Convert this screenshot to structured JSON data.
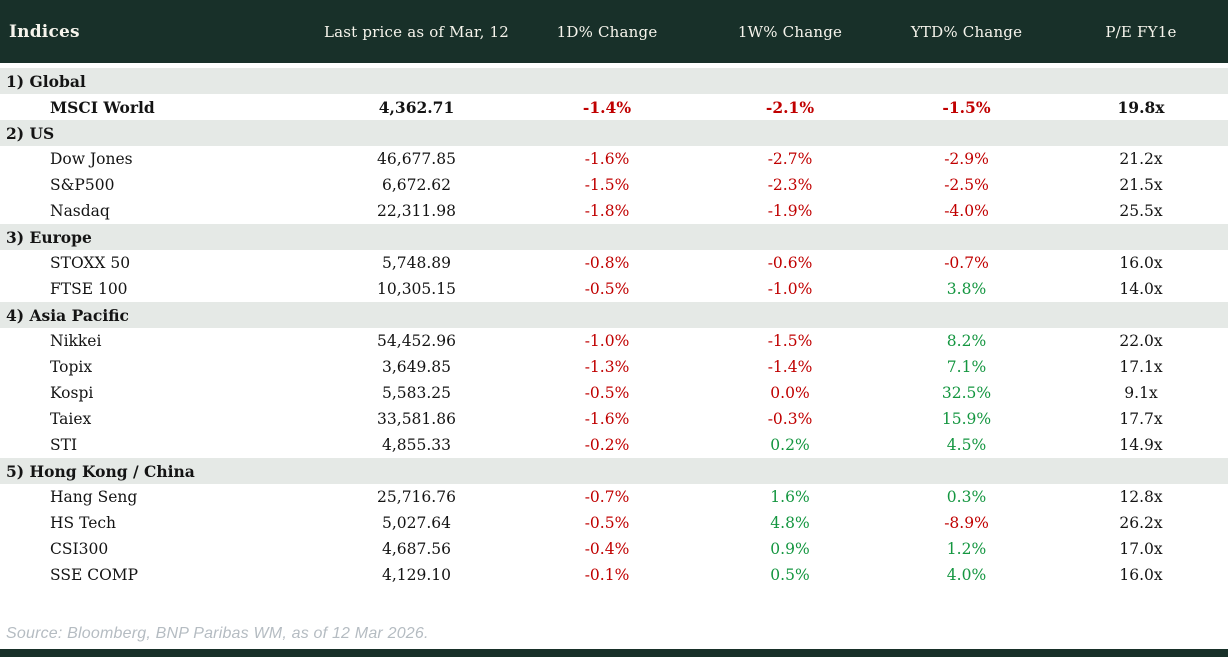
{
  "table": {
    "columns": [
      "Indices",
      "Last price as of Mar, 12",
      "1D% Change",
      "1W% Change",
      "YTD% Change",
      "P/E FY1e"
    ],
    "sections": [
      {
        "label": "1) Global",
        "rows": [
          {
            "name": "MSCI World",
            "bold": true,
            "last": "4,362.71",
            "d1": "-1.4%",
            "w1": "-2.1%",
            "ytd": "-1.5%",
            "pe": "19.8x"
          }
        ]
      },
      {
        "label": "2) US",
        "rows": [
          {
            "name": "Dow Jones",
            "last": "46,677.85",
            "d1": "-1.6%",
            "w1": "-2.7%",
            "ytd": "-2.9%",
            "pe": "21.2x"
          },
          {
            "name": "S&P500",
            "last": "6,672.62",
            "d1": "-1.5%",
            "w1": "-2.3%",
            "ytd": "-2.5%",
            "pe": "21.5x"
          },
          {
            "name": "Nasdaq",
            "last": "22,311.98",
            "d1": "-1.8%",
            "w1": "-1.9%",
            "ytd": "-4.0%",
            "pe": "25.5x"
          }
        ]
      },
      {
        "label": "3) Europe",
        "rows": [
          {
            "name": "STOXX 50",
            "last": "5,748.89",
            "d1": "-0.8%",
            "w1": "-0.6%",
            "ytd": "-0.7%",
            "pe": "16.0x"
          },
          {
            "name": "FTSE 100",
            "last": "10,305.15",
            "d1": "-0.5%",
            "w1": "-1.0%",
            "ytd": "3.8%",
            "pe": "14.0x"
          }
        ]
      },
      {
        "label": "4) Asia Pacific",
        "rows": [
          {
            "name": "Nikkei",
            "last": "54,452.96",
            "d1": "-1.0%",
            "w1": "-1.5%",
            "ytd": "8.2%",
            "pe": "22.0x"
          },
          {
            "name": "Topix",
            "last": "3,649.85",
            "d1": "-1.3%",
            "w1": "-1.4%",
            "ytd": "7.1%",
            "pe": "17.1x"
          },
          {
            "name": "Kospi",
            "last": "5,583.25",
            "d1": "-0.5%",
            "w1": "0.0%",
            "ytd": "32.5%",
            "pe": "9.1x"
          },
          {
            "name": "Taiex",
            "last": "33,581.86",
            "d1": "-1.6%",
            "w1": "-0.3%",
            "ytd": "15.9%",
            "pe": "17.7x"
          },
          {
            "name": "STI",
            "last": "4,855.33",
            "d1": "-0.2%",
            "w1": "0.2%",
            "ytd": "4.5%",
            "pe": "14.9x"
          }
        ]
      },
      {
        "label": "5) Hong Kong / China",
        "rows": [
          {
            "name": "Hang Seng",
            "last": "25,716.76",
            "d1": "-0.7%",
            "w1": "1.6%",
            "ytd": "0.3%",
            "pe": "12.8x"
          },
          {
            "name": "HS Tech",
            "last": "5,027.64",
            "d1": "-0.5%",
            "w1": "4.8%",
            "ytd": "-8.9%",
            "pe": "26.2x"
          },
          {
            "name": "CSI300",
            "last": "4,687.56",
            "d1": "-0.4%",
            "w1": "0.9%",
            "ytd": "1.2%",
            "pe": "17.0x"
          },
          {
            "name": "SSE COMP",
            "last": "4,129.10",
            "d1": "-0.1%",
            "w1": "0.5%",
            "ytd": "4.0%",
            "pe": "16.0x"
          }
        ]
      }
    ]
  },
  "footer": {
    "source": "Source: Bloomberg, BNP Paribas WM, as of 12 Mar 2026."
  },
  "colors": {
    "header_bg": "#183029",
    "section_bg": "#e5e9e6",
    "negative": "#c00000",
    "positive": "#149640"
  }
}
